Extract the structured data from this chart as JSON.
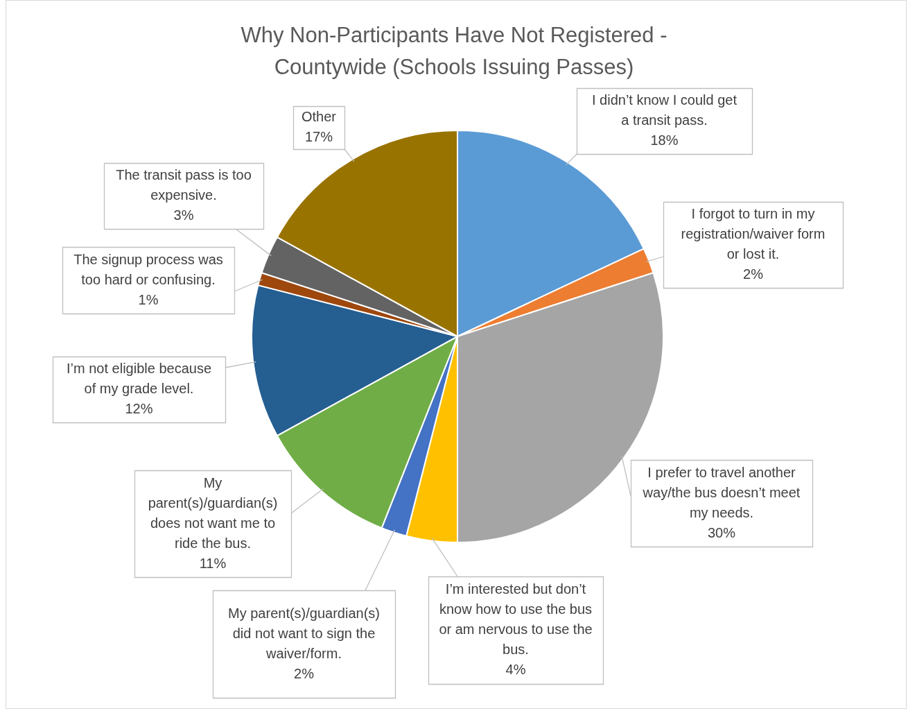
{
  "chart_data": {
    "type": "pie",
    "title": "Why Non-Participants Have Not Registered - Countywide (Schools Issuing Passes)",
    "categories": [
      "I didn’t know I could get a transit pass.",
      "I forgot to turn in my registration/waiver form or lost it.",
      "I prefer to travel another way/the bus doesn’t meet my needs.",
      "I’m interested but don’t know how to use the bus or am nervous to use the bus.",
      "My parent(s)/guardian(s) did not want to sign the waiver/form.",
      "My parent(s)/guardian(s) does not want me to ride the bus.",
      "I’m not eligible because of my grade level.",
      "The signup process was too hard or confusing.",
      "The transit pass is too expensive.",
      "Other"
    ],
    "values": [
      18,
      2,
      30,
      4,
      2,
      11,
      12,
      1,
      3,
      17
    ],
    "value_labels": [
      "18%",
      "2%",
      "30%",
      "4%",
      "2%",
      "11%",
      "12%",
      "1%",
      "3%",
      "17%"
    ],
    "colors": [
      "#5b9bd5",
      "#ed7d31",
      "#a5a5a5",
      "#ffc000",
      "#4472c4",
      "#70ad47",
      "#255e91",
      "#9e480e",
      "#636363",
      "#997300"
    ],
    "legend": false
  }
}
